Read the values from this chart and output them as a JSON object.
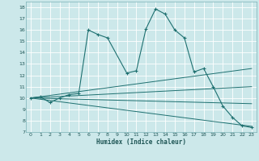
{
  "xlabel": "Humidex (Indice chaleur)",
  "bg_color": "#cce8ea",
  "grid_color": "#ffffff",
  "line_color": "#1e7070",
  "xlim": [
    -0.5,
    23.5
  ],
  "ylim": [
    7,
    18.5
  ],
  "xticks": [
    0,
    1,
    2,
    3,
    4,
    5,
    6,
    7,
    8,
    9,
    10,
    11,
    12,
    13,
    14,
    15,
    16,
    17,
    18,
    19,
    20,
    21,
    22,
    23
  ],
  "yticks": [
    7,
    8,
    9,
    10,
    11,
    12,
    13,
    14,
    15,
    16,
    17,
    18
  ],
  "main_series": {
    "x": [
      0,
      1,
      2,
      3,
      4,
      5,
      6,
      7,
      8,
      10,
      11,
      12,
      13,
      14,
      15,
      16,
      17,
      18,
      19,
      20,
      21,
      22,
      23
    ],
    "y": [
      10,
      10.1,
      9.6,
      10.0,
      10.3,
      10.4,
      16.0,
      15.6,
      15.3,
      12.2,
      12.4,
      16.1,
      17.85,
      17.4,
      16.0,
      15.3,
      12.3,
      12.6,
      11.0,
      9.3,
      8.3,
      7.55,
      7.4
    ]
  },
  "ref_lines": [
    {
      "x": [
        0,
        23
      ],
      "y": [
        10.0,
        12.6
      ]
    },
    {
      "x": [
        0,
        23
      ],
      "y": [
        10.0,
        11.0
      ]
    },
    {
      "x": [
        0,
        23
      ],
      "y": [
        10.0,
        9.5
      ]
    },
    {
      "x": [
        0,
        23
      ],
      "y": [
        10.0,
        7.5
      ]
    }
  ]
}
